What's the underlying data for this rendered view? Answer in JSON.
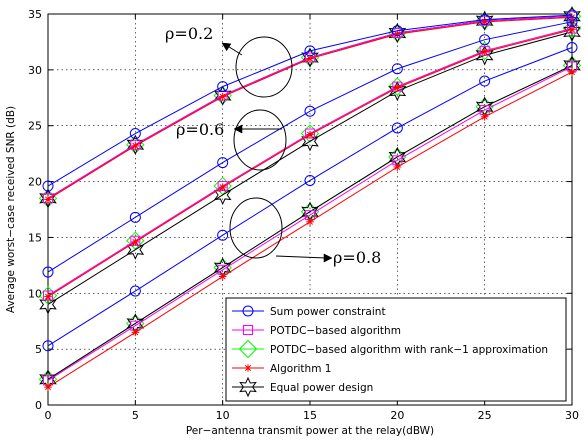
{
  "chart_data": {
    "type": "line",
    "title": "",
    "xlabel": "Per−antenna transmit power at the relay(dBW)",
    "ylabel": "Average worst−case received SNR (dB)",
    "xlim": [
      0,
      30
    ],
    "ylim": [
      0,
      35
    ],
    "x_ticks": [
      "0",
      "5",
      "10",
      "15",
      "20",
      "25",
      "30"
    ],
    "y_ticks": [
      "0",
      "5",
      "10",
      "15",
      "20",
      "25",
      "30",
      "35"
    ],
    "grid": true,
    "legend_position": "bottom-right",
    "x": [
      0,
      5,
      10,
      15,
      20,
      25,
      30
    ],
    "series": [
      {
        "name": "Sum power constraint",
        "group": "ρ=0.2",
        "color": "#0000ff",
        "marker": "circle",
        "values": [
          19.6,
          24.3,
          28.5,
          31.7,
          33.5,
          34.5,
          34.9
        ]
      },
      {
        "name": "POTDC−based algorithm",
        "group": "ρ=0.2",
        "color": "#ff00ff",
        "marker": "square",
        "values": [
          18.5,
          23.3,
          27.7,
          31.1,
          33.3,
          34.4,
          34.8
        ]
      },
      {
        "name": "POTDC−based algorithm with rank−1 approximation",
        "group": "ρ=0.2",
        "color": "#00ff00",
        "marker": "diamond",
        "values": [
          18.5,
          23.3,
          27.7,
          31.1,
          33.3,
          34.4,
          34.8
        ]
      },
      {
        "name": "Algorithm 1",
        "group": "ρ=0.2",
        "color": "#ff0000",
        "marker": "asterisk",
        "values": [
          18.4,
          23.2,
          27.6,
          31.0,
          33.2,
          34.3,
          34.7
        ]
      },
      {
        "name": "Equal power design",
        "group": "ρ=0.2",
        "color": "#000000",
        "marker": "star",
        "values": [
          18.5,
          23.3,
          27.7,
          31.1,
          33.3,
          34.4,
          34.8
        ]
      },
      {
        "name": "Sum power constraint",
        "group": "ρ=0.6",
        "color": "#0000ff",
        "marker": "circle",
        "values": [
          11.9,
          16.8,
          21.7,
          26.3,
          30.1,
          32.7,
          34.3
        ]
      },
      {
        "name": "POTDC−based algorithm",
        "group": "ρ=0.6",
        "color": "#ff00ff",
        "marker": "square",
        "values": [
          9.8,
          14.7,
          19.6,
          24.3,
          28.5,
          31.7,
          33.7
        ]
      },
      {
        "name": "POTDC−based algorithm with rank−1 approximation",
        "group": "ρ=0.6",
        "color": "#00ff00",
        "marker": "diamond",
        "values": [
          9.8,
          14.7,
          19.6,
          24.3,
          28.5,
          31.7,
          33.7
        ]
      },
      {
        "name": "Algorithm 1",
        "group": "ρ=0.6",
        "color": "#ff0000",
        "marker": "asterisk",
        "values": [
          9.7,
          14.6,
          19.5,
          24.2,
          28.4,
          31.6,
          33.6
        ]
      },
      {
        "name": "Equal power design",
        "group": "ρ=0.6",
        "color": "#000000",
        "marker": "star",
        "values": [
          9.0,
          13.9,
          18.8,
          23.6,
          28.1,
          31.3,
          33.4
        ]
      },
      {
        "name": "Sum power constraint",
        "group": "ρ=0.8",
        "color": "#0000ff",
        "marker": "circle",
        "values": [
          5.3,
          10.2,
          15.2,
          20.1,
          24.8,
          29.0,
          32.0
        ]
      },
      {
        "name": "POTDC−based algorithm",
        "group": "ρ=0.8",
        "color": "#ff00ff",
        "marker": "square",
        "values": [
          2.2,
          7.1,
          12.1,
          17.0,
          21.9,
          26.4,
          30.3
        ]
      },
      {
        "name": "POTDC−based algorithm with rank−1 approximation",
        "group": "ρ=0.8",
        "color": "#00ff00",
        "marker": "diamond",
        "values": [
          2.3,
          7.3,
          12.3,
          17.3,
          22.2,
          26.7,
          30.4
        ]
      },
      {
        "name": "Algorithm 1",
        "group": "ρ=0.8",
        "color": "#ff0000",
        "marker": "asterisk",
        "values": [
          1.6,
          6.5,
          11.5,
          16.4,
          21.3,
          25.8,
          29.8
        ]
      },
      {
        "name": "Equal power design",
        "group": "ρ=0.8",
        "color": "#000000",
        "marker": "star",
        "values": [
          2.3,
          7.3,
          12.3,
          17.3,
          22.2,
          26.7,
          30.4
        ]
      }
    ],
    "legend": [
      {
        "label": "Sum power constraint",
        "color": "#0000ff",
        "marker": "circle"
      },
      {
        "label": "POTDC−based algorithm",
        "color": "#ff00ff",
        "marker": "square"
      },
      {
        "label": "POTDC−based algorithm with rank−1 approximation",
        "color": "#00ff00",
        "marker": "diamond"
      },
      {
        "label": "Algorithm 1",
        "color": "#ff0000",
        "marker": "asterisk"
      },
      {
        "label": "Equal power design",
        "color": "#000000",
        "marker": "star"
      }
    ],
    "annotations": [
      {
        "text": "ρ=0.2"
      },
      {
        "text": "ρ=0.6"
      },
      {
        "text": "ρ=0.8"
      }
    ]
  }
}
